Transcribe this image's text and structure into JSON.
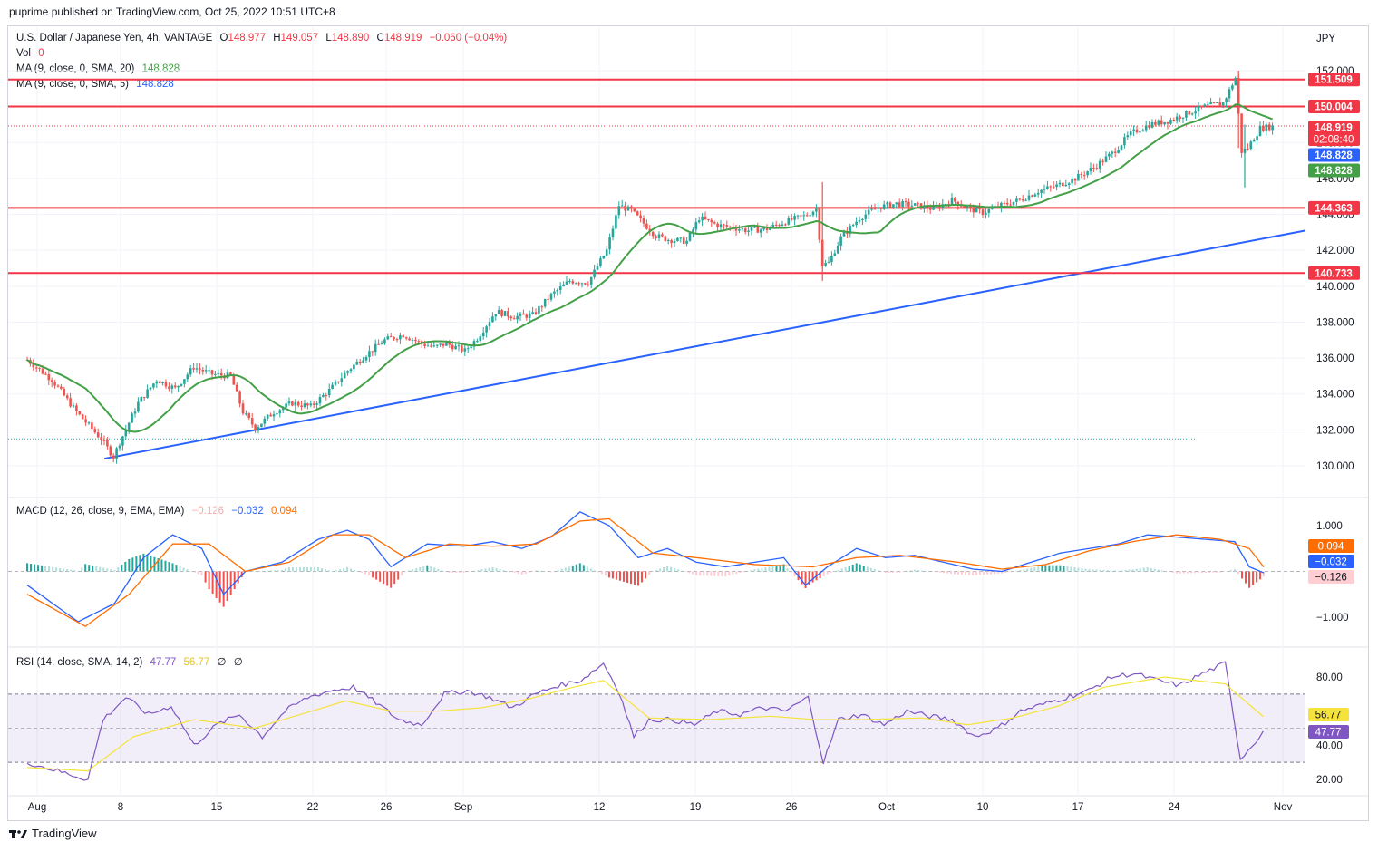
{
  "header": {
    "publisher": "puprime published on TradingView.com, Oct 25, 2022 10:51 UTC+8"
  },
  "footer": {
    "brand": "TradingView"
  },
  "legend": {
    "symbol": "U.S. Dollar / Japanese Yen, 4h, VANTAGE",
    "o_label": "O",
    "o_value": "148.977",
    "h_label": "H",
    "h_value": "149.057",
    "l_label": "L",
    "l_value": "148.890",
    "c_label": "C",
    "c_value": "148.919",
    "change": "−0.060 (−0.04%)",
    "vol_label": "Vol",
    "vol_value": "0",
    "ma1_label": "MA (9, close, 0, SMA, 20)",
    "ma1_value": "148.828",
    "ma2_label": "MA (9, close, 0, SMA, 5)",
    "ma2_value": "148.828",
    "macd_label": "MACD (12, 26, close, 9, EMA, EMA)",
    "macd_hist": "−0.126",
    "macd_line": "−0.032",
    "macd_signal": "0.094",
    "rsi_label": "RSI (14, close, SMA, 14, 2)",
    "rsi_value": "47.77",
    "rsi_ma": "56.77",
    "rsi_extra1": "∅",
    "rsi_extra2": "∅"
  },
  "colors": {
    "up": "#26a69a",
    "down": "#ef5350",
    "ma_green": "#43a047",
    "ma_blue": "#2962ff",
    "hline": "#f23645",
    "trend": "#2962ff",
    "macd": "#2962ff",
    "signal": "#ff6d00",
    "rsi": "#7e57c2",
    "rsi_ma": "#f5e33b"
  },
  "chart_data": [
    {
      "type": "line",
      "title": "USD/JPY 4h candlestick",
      "currency": "JPY",
      "y_ticks": [
        "152.000",
        "150.000",
        "148.000",
        "146.000",
        "144.000",
        "142.000",
        "140.000",
        "138.000",
        "136.000",
        "134.000",
        "132.000",
        "130.000"
      ],
      "ylim": [
        129.5,
        152.6
      ],
      "x_ticks": [
        "Aug",
        "8",
        "15",
        "22",
        "26",
        "Sep",
        "12",
        "19",
        "26",
        "Oct",
        "10",
        "17",
        "24",
        "Nov"
      ],
      "x_dates": [
        "Aug 1",
        "Aug 8",
        "Aug 15",
        "Aug 22",
        "Aug 26",
        "Sep 1",
        "Sep 12",
        "Sep 19",
        "Sep 26",
        "Oct 1",
        "Oct 10",
        "Oct 17",
        "Oct 24",
        "Nov 1"
      ],
      "price_path": [
        [
          0,
          135.9
        ],
        [
          4,
          134.8
        ],
        [
          8,
          133.0
        ],
        [
          12,
          131.5
        ],
        [
          14,
          130.5
        ],
        [
          15,
          131.3
        ],
        [
          18,
          133.5
        ],
        [
          21,
          134.8
        ],
        [
          24,
          134.3
        ],
        [
          27,
          135.5
        ],
        [
          30,
          135.1
        ],
        [
          33,
          135.0
        ],
        [
          35,
          133.0
        ],
        [
          37,
          132.1
        ],
        [
          40,
          133.0
        ],
        [
          43,
          133.5
        ],
        [
          46,
          133.3
        ],
        [
          49,
          134.2
        ],
        [
          52,
          135.3
        ],
        [
          55,
          136.2
        ],
        [
          58,
          137.0
        ],
        [
          61,
          137.3
        ],
        [
          64,
          136.8
        ],
        [
          66,
          136.6
        ],
        [
          68,
          136.8
        ],
        [
          71,
          136.4
        ],
        [
          73,
          137.1
        ],
        [
          76,
          138.6
        ],
        [
          79,
          138.3
        ],
        [
          82,
          138.4
        ],
        [
          85,
          139.5
        ],
        [
          88,
          140.3
        ],
        [
          91,
          140.2
        ],
        [
          94,
          142.0
        ],
        [
          96,
          144.5
        ],
        [
          98,
          144.2
        ],
        [
          100,
          143.5
        ],
        [
          102,
          142.8
        ],
        [
          104,
          142.6
        ],
        [
          107,
          142.5
        ],
        [
          109,
          143.8
        ],
        [
          112,
          143.4
        ],
        [
          114,
          143.3
        ],
        [
          117,
          143.1
        ],
        [
          120,
          143.2
        ],
        [
          123,
          143.6
        ],
        [
          126,
          143.9
        ],
        [
          128,
          144.3
        ],
        [
          129,
          141.2
        ],
        [
          130,
          141.3
        ],
        [
          132,
          142.7
        ],
        [
          135,
          143.8
        ],
        [
          138,
          144.4
        ],
        [
          141,
          144.6
        ],
        [
          144,
          144.5
        ],
        [
          147,
          144.3
        ],
        [
          150,
          144.8
        ],
        [
          153,
          144.3
        ],
        [
          155,
          144.1
        ],
        [
          158,
          144.5
        ],
        [
          161,
          144.8
        ],
        [
          164,
          145.3
        ],
        [
          167,
          145.6
        ],
        [
          170,
          146.0
        ],
        [
          173,
          146.6
        ],
        [
          176,
          147.4
        ],
        [
          179,
          148.5
        ],
        [
          182,
          149.0
        ],
        [
          185,
          149.2
        ],
        [
          188,
          149.6
        ],
        [
          191,
          150.0
        ],
        [
          194,
          150.2
        ],
        [
          196,
          151.6
        ],
        [
          197,
          147.5
        ],
        [
          198,
          147.7
        ],
        [
          200,
          148.8
        ],
        [
          202,
          148.9
        ]
      ],
      "ma20_last": 148.828,
      "ma5_last": 148.828,
      "horizontal_levels": [
        151.509,
        150.004,
        144.363,
        140.733
      ],
      "price_labels": [
        {
          "value": 151.509,
          "text": "151.509",
          "color": "#f23645"
        },
        {
          "value": 150.004,
          "text": "150.004",
          "color": "#f23645"
        },
        {
          "value": 148.919,
          "text": "148.919",
          "sub": "02:08:40",
          "color": "#f23645"
        },
        {
          "value": 148.828,
          "text": "148.828",
          "color": "#2962ff"
        },
        {
          "value": 148.828,
          "text": "148.828",
          "color": "#43a047"
        },
        {
          "value": 144.363,
          "text": "144.363",
          "color": "#f23645"
        },
        {
          "value": 140.733,
          "text": "140.733",
          "color": "#f23645"
        }
      ],
      "trendline": {
        "from": [
          14,
          130.4
        ],
        "to": [
          240,
          143.1
        ]
      },
      "last_close": 148.919
    },
    {
      "type": "line",
      "title": "MACD",
      "y_ticks": [
        "1.000",
        "−1.000"
      ],
      "ylim": [
        -1.3,
        1.3
      ],
      "macd_path": [
        [
          0,
          -0.3
        ],
        [
          7,
          -1.1
        ],
        [
          12,
          -0.7
        ],
        [
          16,
          0.3
        ],
        [
          20,
          0.8
        ],
        [
          24,
          0.5
        ],
        [
          27,
          -0.5
        ],
        [
          30,
          0.0
        ],
        [
          35,
          0.2
        ],
        [
          40,
          0.7
        ],
        [
          44,
          0.9
        ],
        [
          47,
          0.7
        ],
        [
          50,
          0.1
        ],
        [
          55,
          0.6
        ],
        [
          60,
          0.55
        ],
        [
          64,
          0.65
        ],
        [
          68,
          0.5
        ],
        [
          72,
          0.75
        ],
        [
          76,
          1.3
        ],
        [
          80,
          1.0
        ],
        [
          84,
          0.3
        ],
        [
          88,
          0.5
        ],
        [
          92,
          0.2
        ],
        [
          96,
          0.1
        ],
        [
          100,
          0.2
        ],
        [
          104,
          0.3
        ],
        [
          107,
          -0.3
        ],
        [
          110,
          0.1
        ],
        [
          114,
          0.5
        ],
        [
          118,
          0.3
        ],
        [
          122,
          0.35
        ],
        [
          126,
          0.2
        ],
        [
          130,
          0.05
        ],
        [
          134,
          0.0
        ],
        [
          138,
          0.2
        ],
        [
          142,
          0.4
        ],
        [
          146,
          0.5
        ],
        [
          150,
          0.6
        ],
        [
          154,
          0.8
        ],
        [
          158,
          0.75
        ],
        [
          162,
          0.7
        ],
        [
          166,
          0.65
        ],
        [
          168,
          0.1
        ],
        [
          170,
          -0.032
        ]
      ],
      "signal_path": [
        [
          0,
          -0.5
        ],
        [
          8,
          -1.2
        ],
        [
          14,
          -0.5
        ],
        [
          20,
          0.6
        ],
        [
          25,
          0.6
        ],
        [
          30,
          0.0
        ],
        [
          36,
          0.2
        ],
        [
          42,
          0.8
        ],
        [
          47,
          0.8
        ],
        [
          52,
          0.3
        ],
        [
          58,
          0.6
        ],
        [
          64,
          0.55
        ],
        [
          70,
          0.6
        ],
        [
          76,
          1.1
        ],
        [
          80,
          1.15
        ],
        [
          86,
          0.4
        ],
        [
          92,
          0.3
        ],
        [
          100,
          0.15
        ],
        [
          108,
          0.1
        ],
        [
          114,
          0.3
        ],
        [
          120,
          0.35
        ],
        [
          128,
          0.2
        ],
        [
          134,
          0.05
        ],
        [
          140,
          0.15
        ],
        [
          146,
          0.45
        ],
        [
          152,
          0.65
        ],
        [
          158,
          0.8
        ],
        [
          164,
          0.7
        ],
        [
          168,
          0.5
        ],
        [
          170,
          0.094
        ]
      ],
      "hist_last": -0.126,
      "macd_last": -0.032,
      "signal_last": 0.094
    },
    {
      "type": "line",
      "title": "RSI",
      "y_ticks": [
        "80.00",
        "40.00",
        "20.00"
      ],
      "ylim": [
        15,
        95
      ],
      "bands": [
        70,
        30
      ],
      "middle": 50,
      "rsi_path": [
        [
          0,
          30
        ],
        [
          4,
          25
        ],
        [
          8,
          20
        ],
        [
          10,
          55
        ],
        [
          13,
          68
        ],
        [
          16,
          58
        ],
        [
          19,
          63
        ],
        [
          22,
          40
        ],
        [
          25,
          52
        ],
        [
          28,
          58
        ],
        [
          31,
          45
        ],
        [
          34,
          60
        ],
        [
          37,
          68
        ],
        [
          40,
          72
        ],
        [
          43,
          74
        ],
        [
          46,
          65
        ],
        [
          49,
          55
        ],
        [
          52,
          52
        ],
        [
          55,
          70
        ],
        [
          58,
          72
        ],
        [
          61,
          68
        ],
        [
          64,
          62
        ],
        [
          67,
          70
        ],
        [
          70,
          75
        ],
        [
          73,
          78
        ],
        [
          76,
          88
        ],
        [
          78,
          72
        ],
        [
          80,
          45
        ],
        [
          82,
          55
        ],
        [
          85,
          55
        ],
        [
          88,
          52
        ],
        [
          91,
          60
        ],
        [
          94,
          58
        ],
        [
          97,
          62
        ],
        [
          100,
          60
        ],
        [
          103,
          68
        ],
        [
          105,
          30
        ],
        [
          107,
          55
        ],
        [
          110,
          58
        ],
        [
          113,
          52
        ],
        [
          116,
          60
        ],
        [
          119,
          57
        ],
        [
          122,
          55
        ],
        [
          125,
          45
        ],
        [
          128,
          50
        ],
        [
          131,
          60
        ],
        [
          134,
          64
        ],
        [
          137,
          68
        ],
        [
          140,
          72
        ],
        [
          143,
          80
        ],
        [
          146,
          82
        ],
        [
          149,
          78
        ],
        [
          152,
          75
        ],
        [
          155,
          82
        ],
        [
          158,
          88
        ],
        [
          160,
          32
        ],
        [
          163,
          47.77
        ]
      ],
      "rsi_ma_path": [
        [
          0,
          27
        ],
        [
          8,
          25
        ],
        [
          14,
          45
        ],
        [
          22,
          55
        ],
        [
          30,
          50
        ],
        [
          36,
          58
        ],
        [
          42,
          66
        ],
        [
          48,
          60
        ],
        [
          54,
          60
        ],
        [
          60,
          62
        ],
        [
          66,
          67
        ],
        [
          72,
          74
        ],
        [
          76,
          78
        ],
        [
          82,
          56
        ],
        [
          90,
          55
        ],
        [
          98,
          57
        ],
        [
          104,
          55
        ],
        [
          110,
          55
        ],
        [
          118,
          56
        ],
        [
          124,
          52
        ],
        [
          130,
          56
        ],
        [
          136,
          63
        ],
        [
          142,
          74
        ],
        [
          150,
          80
        ],
        [
          158,
          76
        ],
        [
          163,
          56.77
        ]
      ],
      "rsi_last": 47.77,
      "rsi_ma_last": 56.77
    }
  ]
}
